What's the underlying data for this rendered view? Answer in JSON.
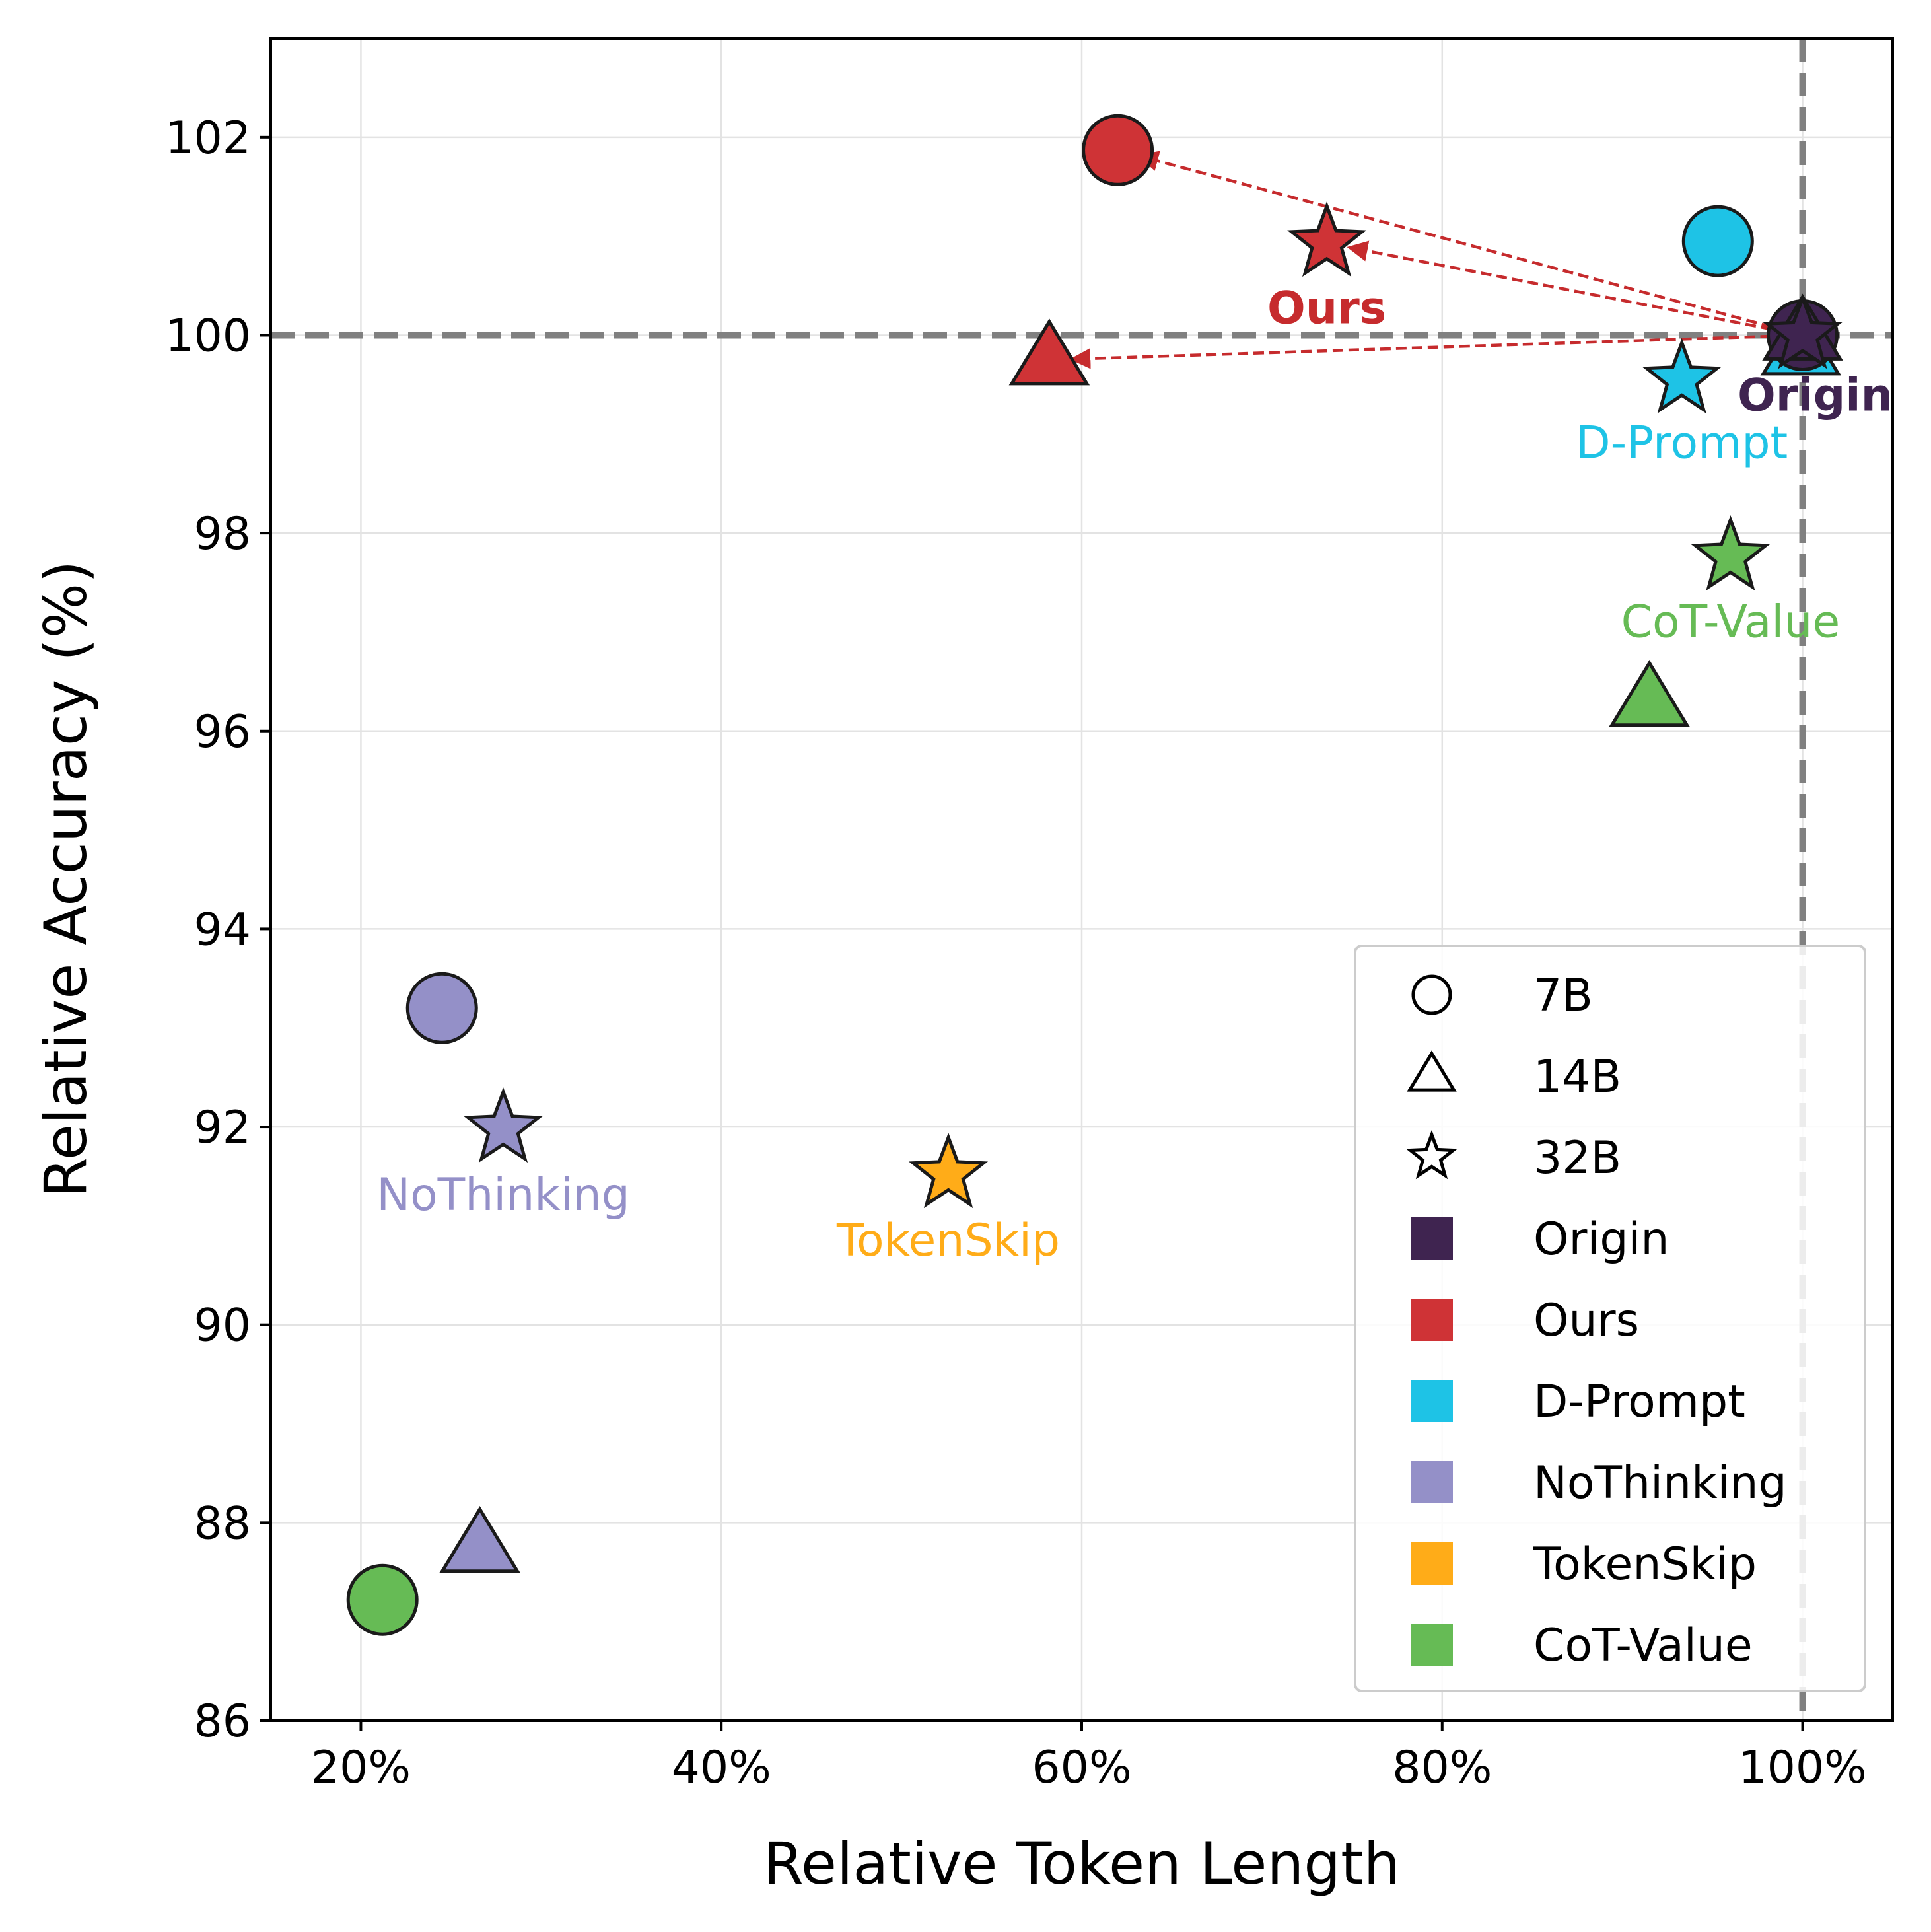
{
  "chart_data": {
    "type": "scatter",
    "title": "",
    "xlabel": "Relative Token Length",
    "ylabel": "Relative Accuracy (%)",
    "xlim": [
      15,
      105
    ],
    "ylim": [
      86,
      103
    ],
    "x_ticks": [
      20,
      40,
      60,
      80,
      100
    ],
    "x_tick_labels": [
      "20%",
      "40%",
      "60%",
      "80%",
      "100%"
    ],
    "y_ticks": [
      86,
      88,
      90,
      92,
      94,
      96,
      98,
      100,
      102
    ],
    "y_tick_labels": [
      "86",
      "88",
      "90",
      "92",
      "94",
      "96",
      "98",
      "100",
      "102"
    ],
    "grid": true,
    "reference_lines": {
      "x": 100,
      "y": 100
    },
    "legend_position": "bottom-right",
    "sizes": [
      {
        "key": "7B",
        "label": "7B",
        "marker": "circle"
      },
      {
        "key": "14B",
        "label": "14B",
        "marker": "triangle"
      },
      {
        "key": "32B",
        "label": "32B",
        "marker": "star"
      }
    ],
    "methods": [
      {
        "name": "Origin",
        "color": "#3f2450"
      },
      {
        "name": "Ours",
        "color": "#cf3336"
      },
      {
        "name": "D-Prompt",
        "color": "#1ec3e6"
      },
      {
        "name": "NoThinking",
        "color": "#9490c8"
      },
      {
        "name": "TokenSkip",
        "color": "#ffac18"
      },
      {
        "name": "CoT-Value",
        "color": "#66bb55"
      }
    ],
    "series": [
      {
        "name": "Origin",
        "points": [
          {
            "size": "7B",
            "x": 100,
            "y": 100
          },
          {
            "size": "14B",
            "x": 100,
            "y": 100
          },
          {
            "size": "32B",
            "x": 100,
            "y": 100
          }
        ]
      },
      {
        "name": "Ours",
        "points": [
          {
            "size": "7B",
            "x": 62.0,
            "y": 101.87
          },
          {
            "size": "14B",
            "x": 58.2,
            "y": 99.75
          },
          {
            "size": "32B",
            "x": 73.6,
            "y": 100.93
          }
        ]
      },
      {
        "name": "D-Prompt",
        "points": [
          {
            "size": "7B",
            "x": 95.3,
            "y": 100.95
          },
          {
            "size": "14B",
            "x": 99.9,
            "y": 99.85
          },
          {
            "size": "32B",
            "x": 93.3,
            "y": 99.55
          }
        ]
      },
      {
        "name": "NoThinking",
        "points": [
          {
            "size": "7B",
            "x": 24.5,
            "y": 93.2
          },
          {
            "size": "14B",
            "x": 26.6,
            "y": 87.75
          },
          {
            "size": "32B",
            "x": 27.9,
            "y": 91.98
          }
        ]
      },
      {
        "name": "TokenSkip",
        "points": [
          {
            "size": "32B",
            "x": 52.6,
            "y": 91.52
          }
        ]
      },
      {
        "name": "CoT-Value",
        "points": [
          {
            "size": "7B",
            "x": 21.2,
            "y": 87.22
          },
          {
            "size": "14B",
            "x": 91.5,
            "y": 96.3
          },
          {
            "size": "32B",
            "x": 96.0,
            "y": 97.76
          }
        ]
      }
    ],
    "arrows": [
      {
        "from": [
          100,
          100
        ],
        "to": [
          62.0,
          101.87
        ]
      },
      {
        "from": [
          100,
          100
        ],
        "to": [
          73.6,
          100.93
        ]
      },
      {
        "from": [
          100,
          100
        ],
        "to": [
          58.2,
          99.75
        ]
      }
    ],
    "annotations": [
      {
        "text": "Ours",
        "x": 73.6,
        "y": 100.28,
        "color": "#c62b2d",
        "bold": true
      },
      {
        "text": "Origin",
        "x": 105.0,
        "y": 99.4,
        "color": "#3f2450",
        "bold": true
      },
      {
        "text": "D-Prompt",
        "x": 93.3,
        "y": 98.92,
        "color": "#1ec3e6",
        "bold": false
      },
      {
        "text": "CoT-Value",
        "x": 96.0,
        "y": 97.11,
        "color": "#66bb55",
        "bold": false
      },
      {
        "text": "NoThinking",
        "x": 27.9,
        "y": 91.32,
        "color": "#9490c8",
        "bold": false
      },
      {
        "text": "TokenSkip",
        "x": 52.6,
        "y": 90.86,
        "color": "#ffac18",
        "bold": false
      }
    ]
  }
}
